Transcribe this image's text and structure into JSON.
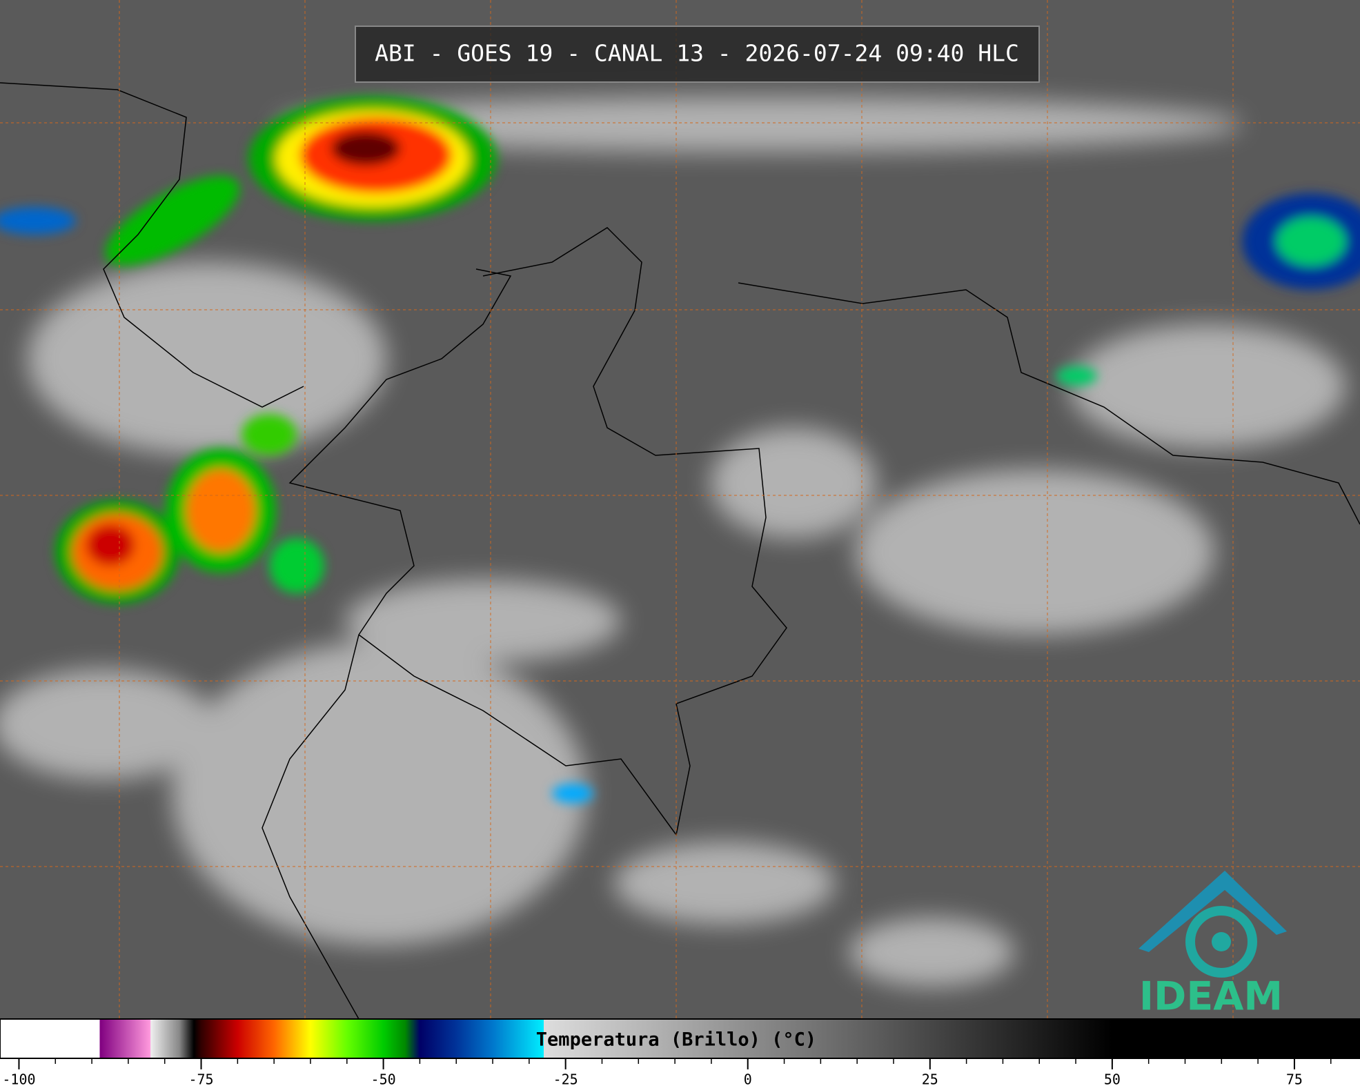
{
  "header": {
    "title": "ABI - GOES 19 - CANAL 13 - 2026-07-24 09:40 HLC"
  },
  "colorbar": {
    "label": "Temperatura (Brillo) (°C)",
    "lim": [
      -102.6,
      84.0
    ],
    "ticks": [
      -100,
      -75,
      -50,
      -25,
      0,
      25,
      50,
      75
    ],
    "minor_ticks": [
      -100,
      -95,
      -90,
      -85,
      -80,
      -75,
      -70,
      -65,
      -60,
      -55,
      -50,
      -45,
      -40,
      -35,
      -30,
      -25,
      -20,
      -15,
      -10,
      -5,
      0,
      5,
      10,
      15,
      20,
      25,
      30,
      35,
      40,
      45,
      50,
      55,
      60,
      65,
      70,
      75,
      80
    ],
    "stops": [
      {
        "value": -102.6,
        "color": "#ffffff"
      },
      {
        "value": -88.9,
        "color": "#ffffff"
      },
      {
        "value": -88.9,
        "color": "#800080"
      },
      {
        "value": -82,
        "color": "#ff99dd"
      },
      {
        "value": -81.9,
        "color": "#eeeeee"
      },
      {
        "value": -78,
        "color": "#888888"
      },
      {
        "value": -76,
        "color": "#000000"
      },
      {
        "value": -75,
        "color": "#300000"
      },
      {
        "value": -70,
        "color": "#cc0000"
      },
      {
        "value": -65,
        "color": "#ff6600"
      },
      {
        "value": -60,
        "color": "#ffff00"
      },
      {
        "value": -55,
        "color": "#66ff00"
      },
      {
        "value": -50,
        "color": "#00cc00"
      },
      {
        "value": -47,
        "color": "#008800"
      },
      {
        "value": -45,
        "color": "#000066"
      },
      {
        "value": -40,
        "color": "#003399"
      },
      {
        "value": -35,
        "color": "#0077cc"
      },
      {
        "value": -28,
        "color": "#00eeff"
      },
      {
        "value": -28,
        "color": "#dddddd"
      },
      {
        "value": 50,
        "color": "#000000"
      },
      {
        "value": 84.0,
        "color": "#000000"
      }
    ]
  },
  "logo": {
    "text": "IDEAM"
  }
}
